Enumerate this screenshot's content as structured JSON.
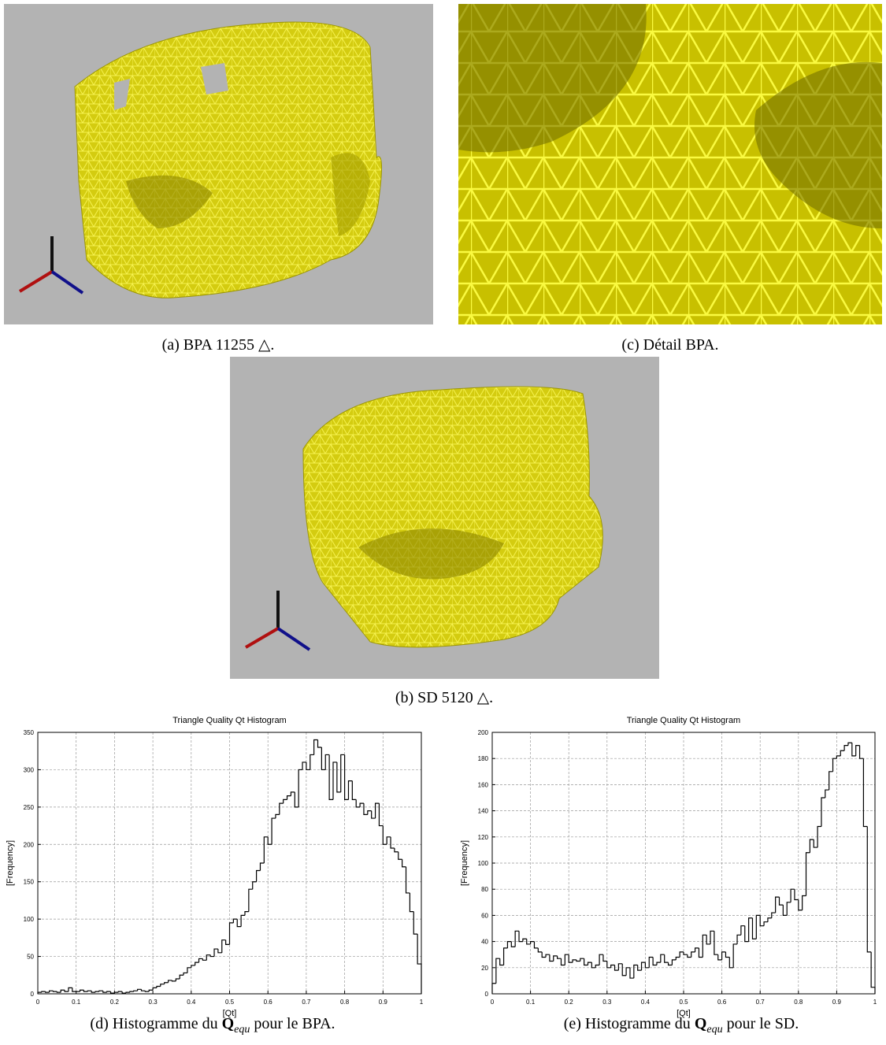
{
  "panels": [
    {
      "caption": "(a) BPA 11255 △."
    },
    {
      "caption": "(c) Détail BPA."
    },
    {
      "caption": "(b) SD 5120 △."
    }
  ],
  "captions": [
    {
      "prefix": "(d) Histogramme du",
      "symbol": "Q",
      "subscript": "equ",
      "suffix": "pour le BPA."
    },
    {
      "prefix": "(e) Histogramme du",
      "symbol": "Q",
      "subscript": "equ",
      "suffix": "pour le SD."
    }
  ],
  "chart_data": [
    {
      "type": "histogram",
      "title": "Triangle Quality Qt Histogram",
      "xlabel": "[Qt]",
      "ylabel": "[Frequency]",
      "color": "#000000",
      "grid": true,
      "xlim": [
        0,
        1
      ],
      "ylim": [
        0,
        350
      ],
      "xticks": [
        0,
        0.1,
        0.2,
        0.3,
        0.4,
        0.5,
        0.6,
        0.7,
        0.8,
        0.9,
        1
      ],
      "yticks": [
        0,
        50,
        100,
        150,
        200,
        250,
        300,
        350
      ],
      "bins": [
        0,
        0.01,
        0.02,
        0.03,
        0.04,
        0.05,
        0.06,
        0.07,
        0.08,
        0.09,
        0.1,
        0.11,
        0.12,
        0.13,
        0.14,
        0.15,
        0.16,
        0.17,
        0.18,
        0.19,
        0.2,
        0.21,
        0.22,
        0.23,
        0.24,
        0.25,
        0.26,
        0.27,
        0.28,
        0.29,
        0.3,
        0.31,
        0.32,
        0.33,
        0.34,
        0.35,
        0.36,
        0.37,
        0.38,
        0.39,
        0.4,
        0.41,
        0.42,
        0.43,
        0.44,
        0.45,
        0.46,
        0.47,
        0.48,
        0.49,
        0.5,
        0.51,
        0.52,
        0.53,
        0.54,
        0.55,
        0.56,
        0.57,
        0.58,
        0.59,
        0.6,
        0.61,
        0.62,
        0.63,
        0.64,
        0.65,
        0.66,
        0.67,
        0.68,
        0.69,
        0.7,
        0.71,
        0.72,
        0.73,
        0.74,
        0.75,
        0.76,
        0.77,
        0.78,
        0.79,
        0.8,
        0.81,
        0.82,
        0.83,
        0.84,
        0.85,
        0.86,
        0.87,
        0.88,
        0.89,
        0.9,
        0.91,
        0.92,
        0.93,
        0.94,
        0.95,
        0.96,
        0.97,
        0.98,
        0.99,
        1
      ],
      "values": [
        2,
        3,
        2,
        4,
        3,
        2,
        5,
        3,
        8,
        3,
        3,
        5,
        3,
        4,
        2,
        3,
        4,
        2,
        3,
        1,
        2,
        3,
        1,
        2,
        3,
        4,
        6,
        4,
        3,
        5,
        8,
        10,
        13,
        15,
        18,
        17,
        20,
        25,
        28,
        35,
        38,
        42,
        47,
        45,
        52,
        50,
        60,
        55,
        72,
        66,
        95,
        100,
        90,
        105,
        110,
        140,
        150,
        165,
        175,
        210,
        200,
        235,
        240,
        255,
        260,
        265,
        270,
        250,
        300,
        310,
        300,
        320,
        340,
        330,
        300,
        320,
        260,
        310,
        270,
        320,
        260,
        285,
        260,
        250,
        255,
        240,
        245,
        235,
        255,
        225,
        200,
        210,
        195,
        190,
        180,
        170,
        135,
        110,
        80,
        40
      ]
    },
    {
      "type": "histogram",
      "title": "Triangle Quality Qt Histogram",
      "xlabel": "[Qt]",
      "ylabel": "[Frequency]",
      "color": "#000000",
      "grid": true,
      "xlim": [
        0,
        1
      ],
      "ylim": [
        0,
        200
      ],
      "xticks": [
        0,
        0.1,
        0.2,
        0.3,
        0.4,
        0.5,
        0.6,
        0.7,
        0.8,
        0.9,
        1
      ],
      "yticks": [
        0,
        20,
        40,
        60,
        80,
        100,
        120,
        140,
        160,
        180,
        200
      ],
      "bins": [
        0,
        0.01,
        0.02,
        0.03,
        0.04,
        0.05,
        0.06,
        0.07,
        0.08,
        0.09,
        0.1,
        0.11,
        0.12,
        0.13,
        0.14,
        0.15,
        0.16,
        0.17,
        0.18,
        0.19,
        0.2,
        0.21,
        0.22,
        0.23,
        0.24,
        0.25,
        0.26,
        0.27,
        0.28,
        0.29,
        0.3,
        0.31,
        0.32,
        0.33,
        0.34,
        0.35,
        0.36,
        0.37,
        0.38,
        0.39,
        0.4,
        0.41,
        0.42,
        0.43,
        0.44,
        0.45,
        0.46,
        0.47,
        0.48,
        0.49,
        0.5,
        0.51,
        0.52,
        0.53,
        0.54,
        0.55,
        0.56,
        0.57,
        0.58,
        0.59,
        0.6,
        0.61,
        0.62,
        0.63,
        0.64,
        0.65,
        0.66,
        0.67,
        0.68,
        0.69,
        0.7,
        0.71,
        0.72,
        0.73,
        0.74,
        0.75,
        0.76,
        0.77,
        0.78,
        0.79,
        0.8,
        0.81,
        0.82,
        0.83,
        0.84,
        0.85,
        0.86,
        0.87,
        0.88,
        0.89,
        0.9,
        0.91,
        0.92,
        0.93,
        0.94,
        0.95,
        0.96,
        0.97,
        0.98,
        0.99,
        1
      ],
      "values": [
        8,
        27,
        22,
        35,
        40,
        36,
        48,
        40,
        42,
        38,
        40,
        35,
        32,
        28,
        30,
        25,
        29,
        27,
        22,
        30,
        24,
        26,
        25,
        27,
        22,
        24,
        20,
        22,
        30,
        25,
        20,
        22,
        18,
        23,
        14,
        20,
        12,
        22,
        18,
        24,
        20,
        28,
        22,
        24,
        30,
        24,
        22,
        26,
        28,
        32,
        30,
        28,
        32,
        35,
        28,
        45,
        38,
        48,
        30,
        26,
        32,
        28,
        20,
        38,
        45,
        52,
        40,
        58,
        42,
        60,
        52,
        55,
        58,
        62,
        74,
        68,
        60,
        70,
        80,
        72,
        64,
        75,
        108,
        118,
        112,
        128,
        150,
        156,
        170,
        180,
        182,
        186,
        190,
        192,
        182,
        190,
        180,
        128,
        32,
        5
      ]
    }
  ]
}
